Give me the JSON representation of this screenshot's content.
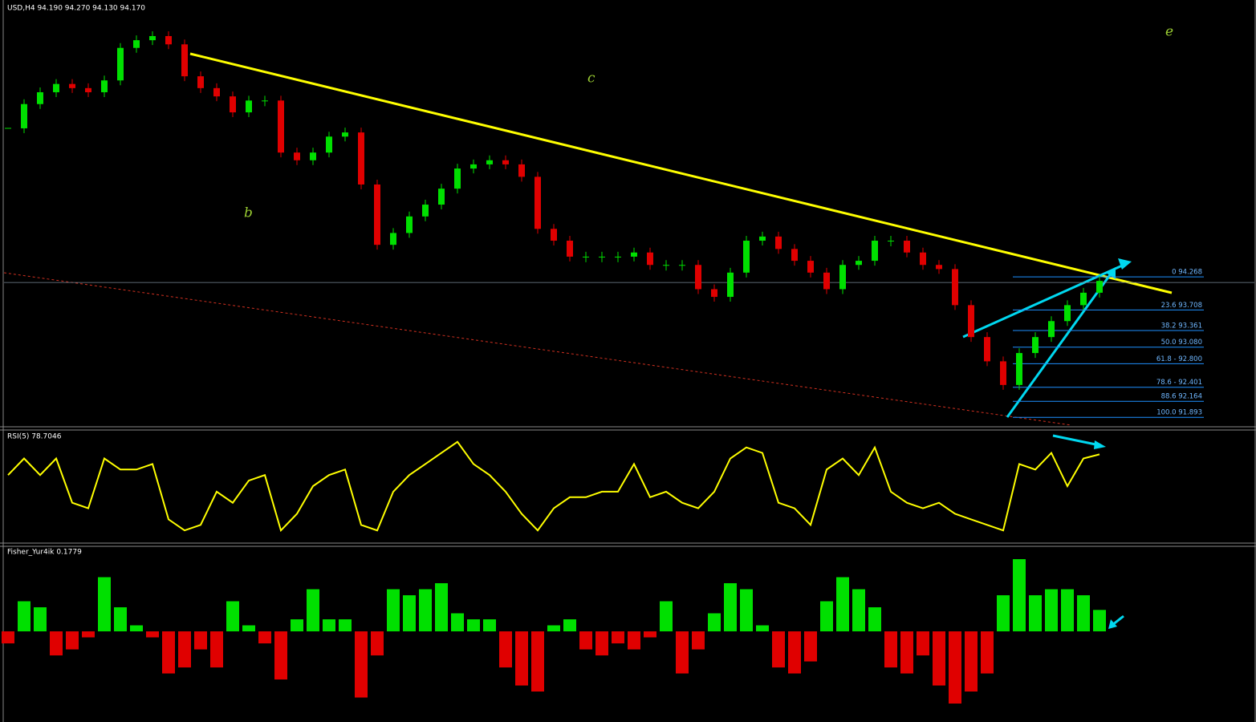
{
  "chart_data": [
    {
      "type": "candlestick",
      "title": "USD,H4  94.190 94.270 94.130 94.170",
      "annotations": [
        "b",
        "c",
        "e"
      ],
      "categories": [
        null,
        null,
        null,
        null,
        null,
        null,
        null,
        null,
        null,
        null,
        null,
        null,
        null,
        null,
        null,
        null,
        null,
        null,
        null,
        null,
        null,
        null,
        null,
        null,
        null,
        null,
        null,
        null,
        null,
        null,
        null,
        null,
        null,
        null,
        null,
        null,
        null,
        null,
        null,
        null,
        null,
        null,
        null,
        null,
        null,
        null,
        null,
        null,
        null,
        null,
        null,
        null,
        null,
        null,
        null,
        null,
        null,
        null,
        null,
        null,
        null,
        null,
        null,
        null,
        null,
        null,
        null,
        null,
        null
      ],
      "values": [
        96.78,
        97.19,
        97.39,
        97.53,
        97.46,
        97.39,
        97.59,
        98.14,
        98.27,
        98.34,
        98.2,
        97.66,
        97.46,
        97.32,
        97.05,
        97.25,
        97.25,
        96.37,
        96.24,
        96.37,
        96.64,
        96.71,
        95.83,
        94.81,
        95.01,
        95.29,
        95.49,
        95.76,
        96.1,
        96.17,
        96.24,
        96.17,
        95.96,
        95.08,
        94.88,
        94.61,
        94.61,
        94.61,
        94.61,
        94.68,
        94.47,
        94.47,
        94.47,
        94.06,
        93.93,
        94.34,
        94.88,
        94.95,
        94.74,
        94.54,
        94.34,
        94.06,
        94.47,
        94.54,
        94.88,
        94.88,
        94.68,
        94.47,
        94.4,
        93.79,
        93.25,
        92.84,
        92.44,
        92.98,
        93.25,
        93.52,
        93.79,
        94.0,
        94.2
      ],
      "up_color": "#00e000",
      "down_color": "#e00000",
      "ylim": [
        91.76,
        98.95
      ],
      "fib_levels": [
        {
          "value": 94.268,
          "label": "0 94.268"
        },
        {
          "value": 93.708,
          "label": "23.6 93.708"
        },
        {
          "value": 93.361,
          "label": "38.2 93.361"
        },
        {
          "value": 93.08,
          "label": "50.0 93.080"
        },
        {
          "value": 92.8,
          "label": "61.8 - 92.800"
        },
        {
          "value": 92.401,
          "label": "78.6 - 92.401"
        },
        {
          "value": 92.164,
          "label": "88.6 92.164"
        },
        {
          "value": 91.893,
          "label": "100.0 91.893"
        }
      ],
      "fib_color": "#1e90ff"
    },
    {
      "type": "line",
      "title": "RSI(5) 78.7046",
      "color": "#ffff00",
      "categories": [
        null,
        null,
        null,
        null,
        null,
        null,
        null,
        null,
        null,
        null,
        null,
        null,
        null,
        null,
        null,
        null,
        null,
        null,
        null,
        null,
        null,
        null,
        null,
        null,
        null,
        null,
        null,
        null,
        null,
        null,
        null,
        null,
        null,
        null,
        null,
        null,
        null,
        null,
        null,
        null,
        null,
        null,
        null,
        null,
        null,
        null,
        null,
        null,
        null,
        null,
        null,
        null,
        null,
        null,
        null,
        null,
        null,
        null,
        null,
        null,
        null,
        null,
        null,
        null,
        null,
        null,
        null,
        null,
        null
      ],
      "values": [
        60,
        75,
        60,
        75,
        35,
        30,
        75,
        65,
        65,
        70,
        20,
        10,
        15,
        45,
        35,
        55,
        60,
        10,
        25,
        50,
        60,
        65,
        15,
        10,
        45,
        60,
        70,
        80,
        90,
        70,
        60,
        45,
        25,
        10,
        30,
        40,
        40,
        45,
        45,
        70,
        40,
        45,
        35,
        30,
        45,
        75,
        85,
        80,
        35,
        30,
        15,
        65,
        75,
        60,
        85,
        45,
        35,
        30,
        35,
        25,
        20,
        15,
        10,
        70,
        65,
        80,
        50,
        75,
        78.7046
      ],
      "ylim": [
        0,
        100
      ]
    },
    {
      "type": "bar",
      "title": "Fisher_Yur4ik 0.1779",
      "up_color": "#00e000",
      "down_color": "#e00000",
      "categories": [
        null,
        null,
        null,
        null,
        null,
        null,
        null,
        null,
        null,
        null,
        null,
        null,
        null,
        null,
        null,
        null,
        null,
        null,
        null,
        null,
        null,
        null,
        null,
        null,
        null,
        null,
        null,
        null,
        null,
        null,
        null,
        null,
        null,
        null,
        null,
        null,
        null,
        null,
        null,
        null,
        null,
        null,
        null,
        null,
        null,
        null,
        null,
        null,
        null,
        null,
        null,
        null,
        null,
        null,
        null,
        null,
        null,
        null,
        null,
        null,
        null,
        null,
        null,
        null,
        null,
        null,
        null,
        null,
        null
      ],
      "values": [
        -0.1,
        0.25,
        0.2,
        -0.2,
        -0.15,
        -0.05,
        0.45,
        0.2,
        0.05,
        -0.05,
        -0.35,
        -0.3,
        -0.15,
        -0.3,
        0.25,
        0.05,
        -0.1,
        -0.4,
        0.1,
        0.35,
        0.1,
        0.1,
        -0.55,
        -0.2,
        0.35,
        0.3,
        0.35,
        0.4,
        0.15,
        0.1,
        0.1,
        -0.3,
        -0.45,
        -0.5,
        0.05,
        0.1,
        -0.15,
        -0.2,
        -0.1,
        -0.15,
        -0.05,
        0.25,
        -0.35,
        -0.15,
        0.15,
        0.4,
        0.35,
        0.05,
        -0.3,
        -0.35,
        -0.25,
        0.25,
        0.45,
        0.35,
        0.2,
        -0.3,
        -0.35,
        -0.2,
        -0.45,
        -0.6,
        -0.5,
        -0.35,
        0.3,
        0.6,
        0.3,
        0.35,
        0.35,
        0.3,
        0.1779
      ],
      "ylim": [
        -0.74,
        0.7
      ]
    }
  ]
}
